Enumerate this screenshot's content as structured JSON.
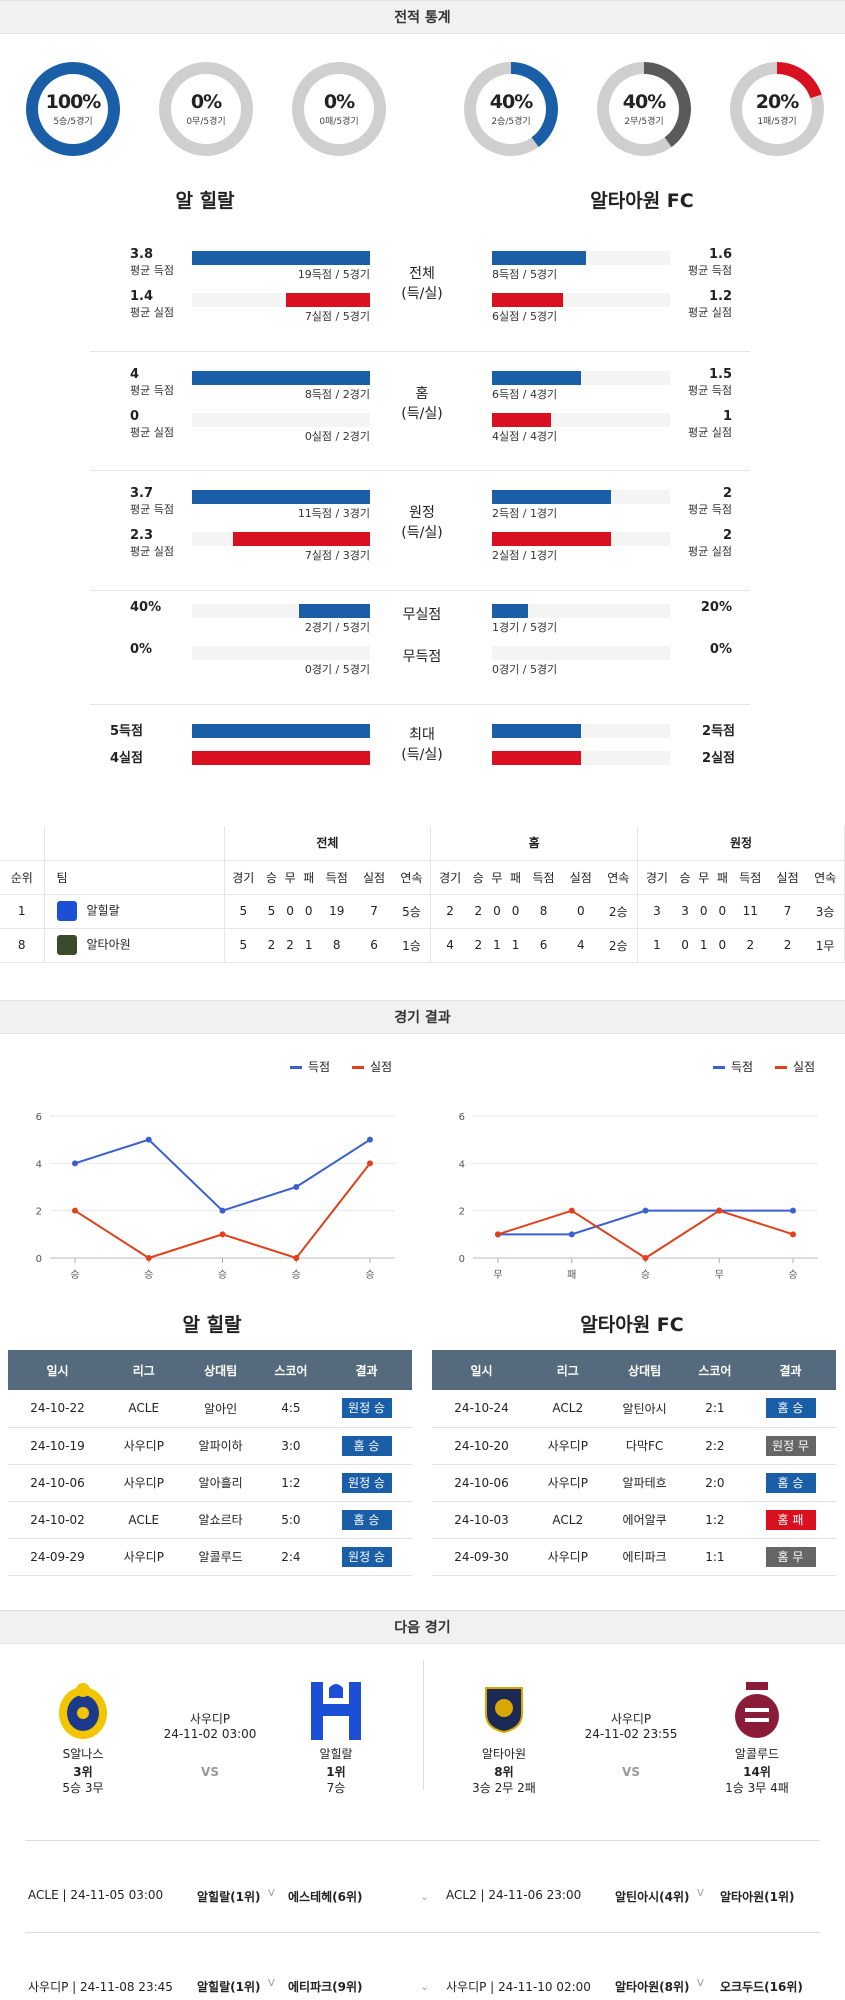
{
  "sections": {
    "stats": "전적 통계",
    "results": "경기 결과",
    "next": "다음 경기"
  },
  "donuts": [
    {
      "pct": "100%",
      "sub": "5승/5경기",
      "color": "#1a5ea8",
      "value": 100
    },
    {
      "pct": "0%",
      "sub": "0무/5경기",
      "color": "#1a5ea8",
      "value": 0
    },
    {
      "pct": "0%",
      "sub": "0패/5경기",
      "color": "#1a5ea8",
      "value": 0
    },
    {
      "pct": "40%",
      "sub": "2승/5경기",
      "color": "#1a5ea8",
      "value": 40
    },
    {
      "pct": "40%",
      "sub": "2무/5경기",
      "color": "#5a5a5a",
      "value": 40
    },
    {
      "pct": "20%",
      "sub": "1패/5경기",
      "color": "#d9101f",
      "value": 20
    }
  ],
  "teams": {
    "home": "알 힐랄",
    "away": "알타아원 FC"
  },
  "stat_groups": [
    {
      "cat": "전체\n(득/실)",
      "rows": [
        {
          "l_num": "3.8",
          "l_lbl": "평균 득점",
          "l_note": "19득점 / 5경기",
          "l_val": 1.0,
          "r_num": "1.6",
          "r_lbl": "평균 득점",
          "r_note": "8득점 / 5경기",
          "r_val": 0.53,
          "color": "blue"
        },
        {
          "l_num": "1.4",
          "l_lbl": "평균 실점",
          "l_note": "7실점 / 5경기",
          "l_val": 0.47,
          "r_num": "1.2",
          "r_lbl": "평균 실점",
          "r_note": "6실점 / 5경기",
          "r_val": 0.4,
          "color": "red"
        }
      ]
    },
    {
      "cat": "홈\n(득/실)",
      "rows": [
        {
          "l_num": "4",
          "l_lbl": "평균 득점",
          "l_note": "8득점 / 2경기",
          "l_val": 1.0,
          "r_num": "1.5",
          "r_lbl": "평균 득점",
          "r_note": "6득점 / 4경기",
          "r_val": 0.5,
          "color": "blue"
        },
        {
          "l_num": "0",
          "l_lbl": "평균 실점",
          "l_note": "0실점 / 2경기",
          "l_val": 0,
          "r_num": "1",
          "r_lbl": "평균 실점",
          "r_note": "4실점 / 4경기",
          "r_val": 0.33,
          "color": "red"
        }
      ]
    },
    {
      "cat": "원정\n(득/실)",
      "rows": [
        {
          "l_num": "3.7",
          "l_lbl": "평균 득점",
          "l_note": "11득점 / 3경기",
          "l_val": 1.0,
          "r_num": "2",
          "r_lbl": "평균 득점",
          "r_note": "2득점 / 1경기",
          "r_val": 0.67,
          "color": "blue"
        },
        {
          "l_num": "2.3",
          "l_lbl": "평균 실점",
          "l_note": "7실점 / 3경기",
          "l_val": 0.77,
          "r_num": "2",
          "r_lbl": "평균 실점",
          "r_note": "2실점 / 1경기",
          "r_val": 0.67,
          "color": "red"
        }
      ]
    },
    {
      "cat": "",
      "rows": [
        {
          "l_num": "40%",
          "l_lbl": "",
          "l_note": "2경기 / 5경기",
          "l_val": 0.4,
          "r_num": "20%",
          "r_lbl": "",
          "r_note": "1경기 / 5경기",
          "r_val": 0.2,
          "color": "blue",
          "mid": "무실점"
        },
        {
          "l_num": "0%",
          "l_lbl": "",
          "l_note": "0경기 / 5경기",
          "l_val": 0,
          "r_num": "0%",
          "r_lbl": "",
          "r_note": "0경기 / 5경기",
          "r_val": 0,
          "color": "blue",
          "mid": "무득점"
        }
      ]
    },
    {
      "cat": "최대\n(득/실)",
      "rows": [
        {
          "l_num": "5득점",
          "l_lbl": "",
          "l_note": "",
          "l_val": 1.0,
          "r_num": "2득점",
          "r_lbl": "",
          "r_note": "",
          "r_val": 0.5,
          "color": "blue"
        },
        {
          "l_num": "4실점",
          "l_lbl": "",
          "l_note": "",
          "l_val": 1.0,
          "r_num": "2실점",
          "r_lbl": "",
          "r_note": "",
          "r_val": 0.5,
          "color": "red"
        }
      ]
    }
  ],
  "standings": {
    "groups": [
      "전체",
      "홈",
      "원정"
    ],
    "cols": [
      "순위",
      "팀"
    ],
    "sub": [
      "경기",
      "승",
      "무",
      "패",
      "득점",
      "실점",
      "연속"
    ],
    "rows": [
      {
        "rank": "1",
        "team": "알힐랄",
        "logo": "hilal",
        "all": [
          "5",
          "5",
          "0",
          "0",
          "19",
          "7",
          "5승"
        ],
        "home": [
          "2",
          "2",
          "0",
          "0",
          "8",
          "0",
          "2승"
        ],
        "away": [
          "3",
          "3",
          "0",
          "0",
          "11",
          "7",
          "3승"
        ]
      },
      {
        "rank": "8",
        "team": "알타아원",
        "logo": "taawoun",
        "all": [
          "5",
          "2",
          "2",
          "1",
          "8",
          "6",
          "1승"
        ],
        "home": [
          "4",
          "2",
          "1",
          "1",
          "6",
          "4",
          "2승"
        ],
        "away": [
          "1",
          "0",
          "1",
          "0",
          "2",
          "2",
          "1무"
        ]
      }
    ]
  },
  "legend": {
    "scored": "득점",
    "conceded": "실점"
  },
  "chart_data": [
    {
      "type": "line",
      "x": [
        "승",
        "승",
        "승",
        "승",
        "승"
      ],
      "ylim": [
        0,
        6
      ],
      "yticks": [
        0,
        2,
        4,
        6
      ],
      "series": [
        {
          "name": "득점",
          "values": [
            4,
            5,
            2,
            3,
            5
          ],
          "color": "#3a5fd0"
        },
        {
          "name": "실점",
          "values": [
            2,
            0,
            1,
            0,
            4
          ],
          "color": "#e0401a"
        }
      ],
      "grid": true,
      "legend": "top-right"
    },
    {
      "type": "line",
      "x": [
        "무",
        "패",
        "승",
        "무",
        "승"
      ],
      "ylim": [
        0,
        6
      ],
      "yticks": [
        0,
        2,
        4,
        6
      ],
      "series": [
        {
          "name": "득점",
          "values": [
            1,
            1,
            2,
            2,
            2
          ],
          "color": "#3a5fd0"
        },
        {
          "name": "실점",
          "values": [
            1,
            2,
            0,
            2,
            1
          ],
          "color": "#e0401a"
        }
      ],
      "grid": true,
      "legend": "top-right"
    }
  ],
  "results": {
    "headers": [
      "일시",
      "리그",
      "상대팀",
      "스코어",
      "결과"
    ],
    "home": [
      [
        "24-10-22",
        "ACLE",
        "알아인",
        "4:5",
        "원정 승",
        "blue"
      ],
      [
        "24-10-19",
        "사우디P",
        "알파이하",
        "3:0",
        "홈 승",
        "blue"
      ],
      [
        "24-10-06",
        "사우디P",
        "알아흘리",
        "1:2",
        "원정 승",
        "blue"
      ],
      [
        "24-10-02",
        "ACLE",
        "알쇼르타",
        "5:0",
        "홈 승",
        "blue"
      ],
      [
        "24-09-29",
        "사우디P",
        "알콜루드",
        "2:4",
        "원정 승",
        "blue"
      ]
    ],
    "away": [
      [
        "24-10-24",
        "ACL2",
        "알틴아시",
        "2:1",
        "홈 승",
        "blue"
      ],
      [
        "24-10-20",
        "사우디P",
        "다막FC",
        "2:2",
        "원정 무",
        "gray"
      ],
      [
        "24-10-06",
        "사우디P",
        "알파테흐",
        "2:0",
        "홈 승",
        "blue"
      ],
      [
        "24-10-03",
        "ACL2",
        "에어알쿠",
        "1:2",
        "홈 패",
        "red"
      ],
      [
        "24-09-30",
        "사우디P",
        "에티파크",
        "1:1",
        "홈 무",
        "gray"
      ]
    ]
  },
  "next": {
    "left": {
      "league": "사우디P",
      "date": "24-11-02 03:00",
      "vs": "VS",
      "t1": "S알나스",
      "t1_rank": "3위",
      "t1_rec": "5승 3무",
      "t2": "알힐랄",
      "t2_rank": "1위",
      "t2_rec": "7승"
    },
    "right": {
      "league": "사우디P",
      "date": "24-11-02 23:55",
      "vs": "VS",
      "t1": "알타아원",
      "t1_rank": "8위",
      "t1_rec": "3승 2무 2패",
      "t2": "알콜루드",
      "t2_rank": "14위",
      "t2_rec": "1승 3무 4패"
    }
  },
  "fixtures": [
    {
      "left": "ACLE | 24-11-05 03:00",
      "lt1": "알힐랄(1위)",
      "lt2": "에스테헤(6위)",
      "right": "ACL2 | 24-11-06 23:00",
      "rt1": "알틴아시(4위)",
      "rt2": "알타아원(1위)"
    },
    {
      "left": "사우디P | 24-11-08 23:45",
      "lt1": "알힐랄(1위)",
      "lt2": "에티파크(9위)",
      "right": "사우디P | 24-11-10 02:00",
      "rt1": "알타아원(8위)",
      "rt2": "오크두드(16위)"
    }
  ]
}
